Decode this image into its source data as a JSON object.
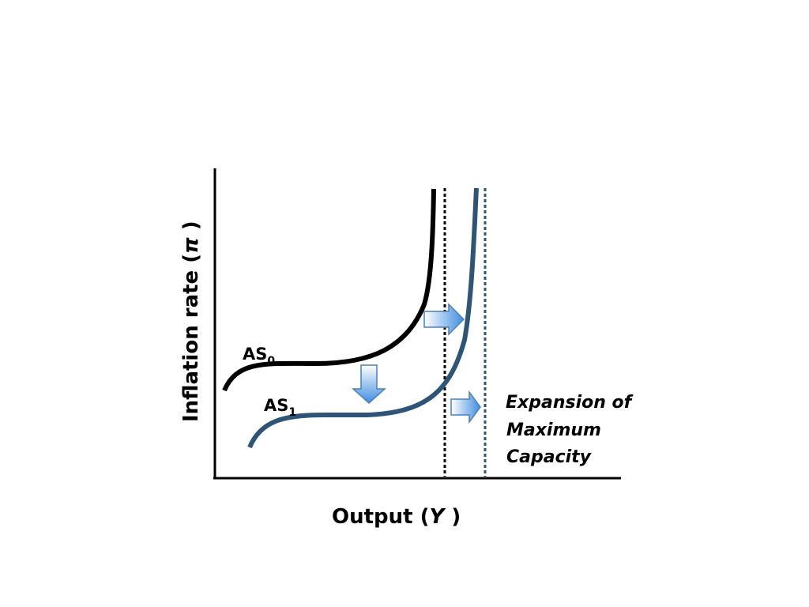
{
  "axes": {
    "y_label": "Inflation rate (",
    "y_symbol": "π",
    "y_close": " )",
    "x_label": "Output (",
    "x_symbol": "Y",
    "x_close": " )"
  },
  "curves": {
    "as0": {
      "label": "AS",
      "subscript": "0",
      "color": "#000000"
    },
    "as1": {
      "label": "AS",
      "subscript": "1",
      "color": "#2e5578"
    }
  },
  "capacity_lines": {
    "old_color": "#000000",
    "new_color": "#2e5578"
  },
  "arrows": {
    "fill_light": "#ffffff",
    "fill_dark": "#3f8de0",
    "stroke": "#4a7fb8",
    "directions": [
      "down",
      "right",
      "right"
    ]
  },
  "annotation": {
    "line1": "Expansion of",
    "line2": "Maximum",
    "line3": "Capacity"
  }
}
